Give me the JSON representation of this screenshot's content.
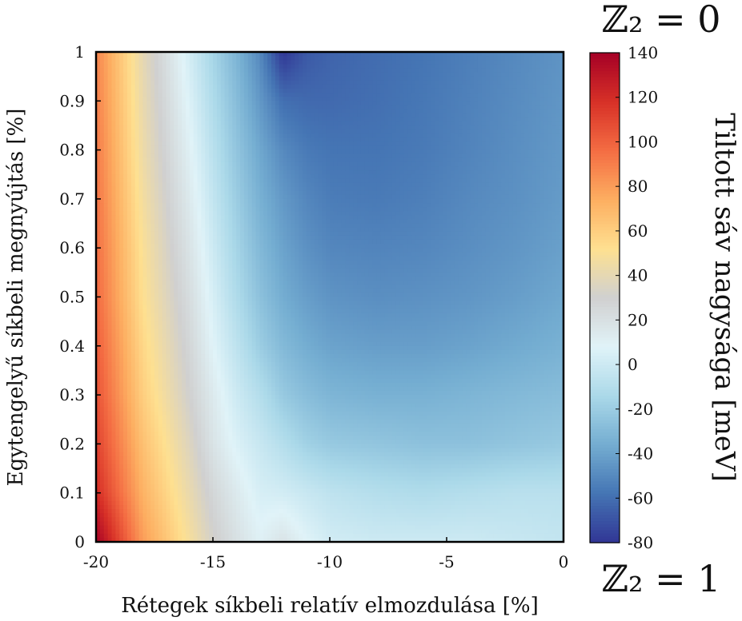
{
  "chart_data": {
    "type": "heatmap",
    "title": "",
    "xlabel": "Rétegek síkbeli relatív elmozdulása [%]",
    "ylabel": "Egytengelyű síkbeli megnyújtás [%]",
    "xlim": [
      -20,
      0
    ],
    "ylim": [
      0,
      1
    ],
    "x_ticks": [
      "-20",
      "-15",
      "-10",
      "-5",
      "0"
    ],
    "y_ticks": [
      "0",
      "0.1",
      "0.2",
      "0.3",
      "0.4",
      "0.5",
      "0.6",
      "0.7",
      "0.8",
      "0.9",
      "1"
    ],
    "x": [
      -20,
      -18,
      -16,
      -15,
      -14,
      -13,
      -12,
      -11,
      -10,
      -8,
      -6,
      -4,
      -2,
      0
    ],
    "y": [
      0,
      0.1,
      0.2,
      0.3,
      0.4,
      0.5,
      0.6,
      0.7,
      0.8,
      0.9,
      1.0
    ],
    "z": [
      [
        140,
        80,
        48,
        32,
        20,
        10,
        18,
        8,
        2,
        0,
        0,
        0,
        -2,
        -4
      ],
      [
        120,
        72,
        42,
        26,
        14,
        4,
        2,
        -2,
        -6,
        -10,
        -12,
        -10,
        -8,
        -8
      ],
      [
        112,
        66,
        36,
        18,
        6,
        -2,
        -10,
        -18,
        -22,
        -24,
        -26,
        -26,
        -24,
        -22
      ],
      [
        106,
        60,
        30,
        14,
        0,
        -10,
        -22,
        -28,
        -32,
        -34,
        -34,
        -32,
        -30,
        -28
      ],
      [
        102,
        56,
        26,
        8,
        -6,
        -20,
        -30,
        -36,
        -40,
        -42,
        -42,
        -40,
        -37,
        -34
      ],
      [
        98,
        52,
        22,
        4,
        -12,
        -26,
        -36,
        -42,
        -46,
        -48,
        -47,
        -45,
        -42,
        -38
      ],
      [
        96,
        50,
        18,
        0,
        -16,
        -30,
        -40,
        -47,
        -51,
        -52,
        -51,
        -48,
        -45,
        -41
      ],
      [
        94,
        47,
        14,
        -4,
        -20,
        -34,
        -44,
        -51,
        -55,
        -56,
        -54,
        -50,
        -47,
        -43
      ],
      [
        92,
        44,
        10,
        -8,
        -24,
        -38,
        -50,
        -56,
        -58,
        -58,
        -56,
        -52,
        -48,
        -44
      ],
      [
        90,
        42,
        6,
        -12,
        -28,
        -44,
        -60,
        -62,
        -62,
        -60,
        -57,
        -53,
        -49,
        -45
      ],
      [
        88,
        40,
        2,
        -16,
        -32,
        -50,
        -80,
        -68,
        -64,
        -61,
        -58,
        -54,
        -50,
        -46
      ]
    ],
    "zlim": [
      -80,
      140
    ],
    "colorbar": {
      "label": "Tiltott sáv nagysága [meV]",
      "ticks": [
        "140",
        "120",
        "100",
        "80",
        "60",
        "40",
        "20",
        "0",
        "-20",
        "-40",
        "-60",
        "-80"
      ],
      "top_annotation": "ℤ₂ = 0",
      "bottom_annotation": "ℤ₂ = 1"
    },
    "colormap": [
      "#313695",
      "#4575b4",
      "#74add1",
      "#abd9e9",
      "#e0f3f8",
      "#d0d0d0",
      "#fee090",
      "#fdae61",
      "#f46d43",
      "#d73027",
      "#a50026"
    ],
    "grid": false
  }
}
